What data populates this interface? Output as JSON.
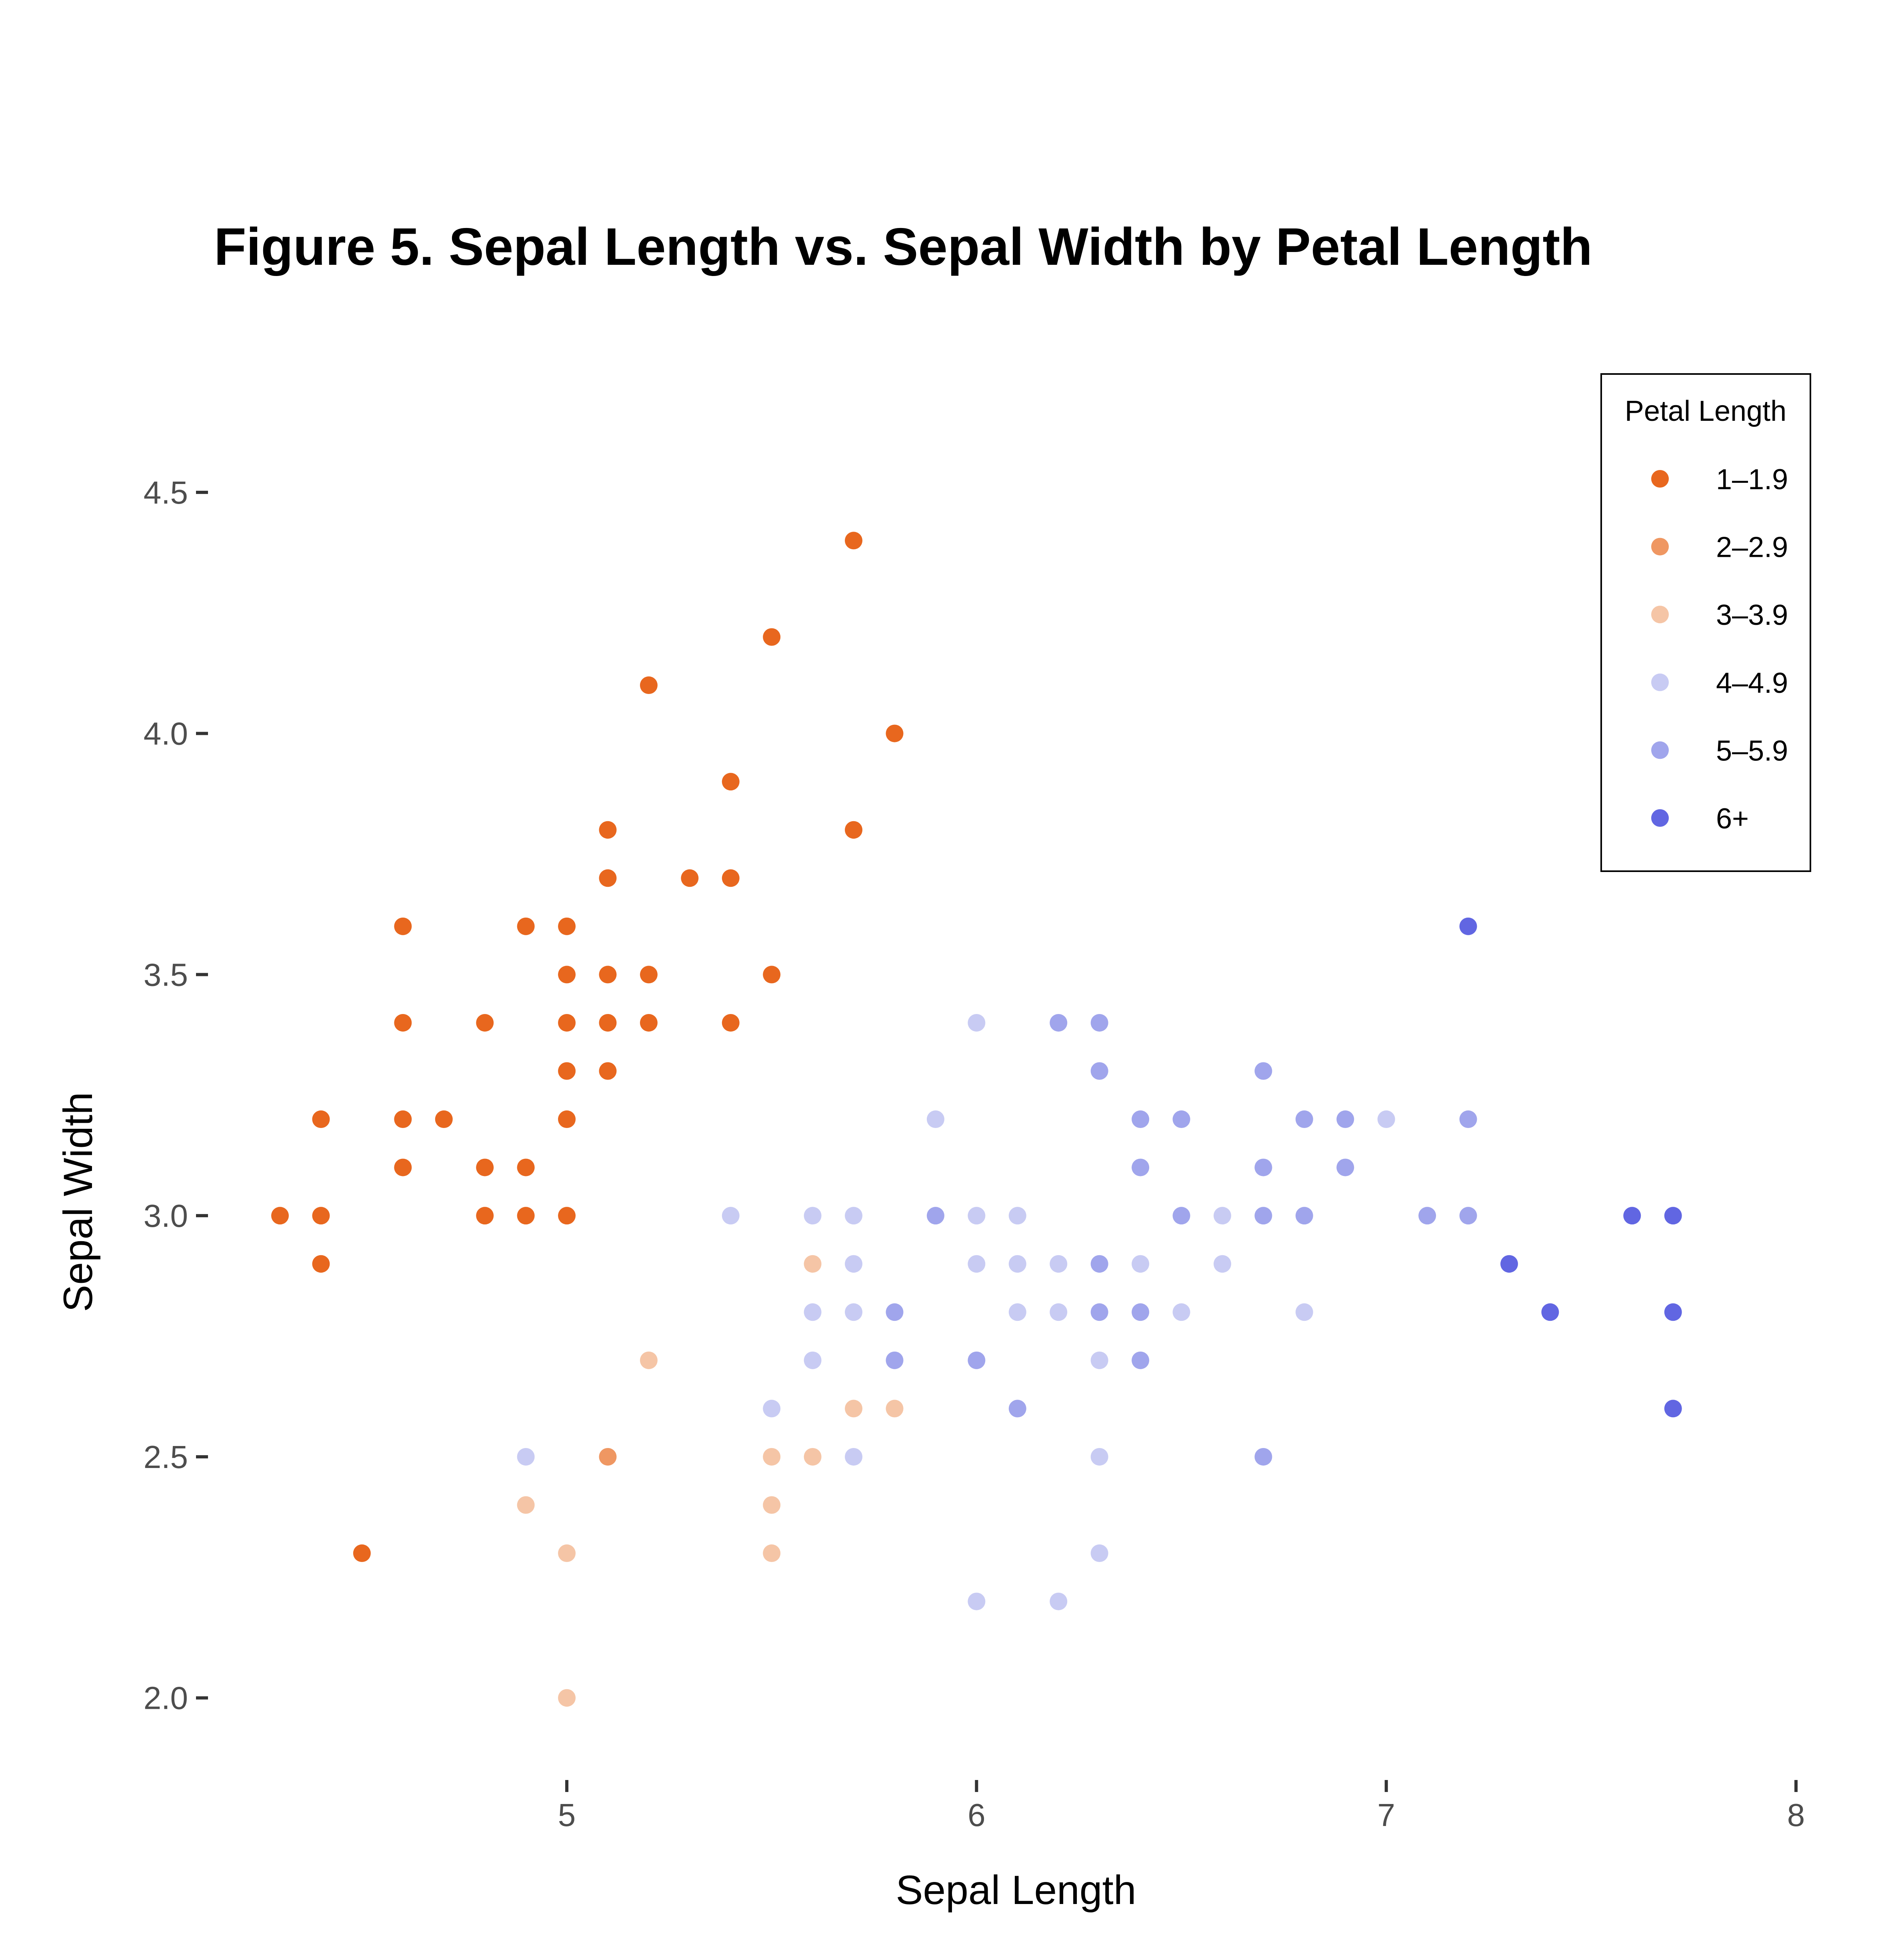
{
  "chart_data": {
    "type": "scatter",
    "title": "Figure 5. Sepal Length vs. Sepal Width by Petal Length",
    "xlabel": "Sepal Length",
    "ylabel": "Sepal Width",
    "xlim": [
      4.3,
      8.0
    ],
    "ylim": [
      1.95,
      4.65
    ],
    "x_ticks": [
      "5",
      "6",
      "7",
      "8"
    ],
    "y_ticks": [
      "2.0",
      "2.5",
      "3.0",
      "3.5",
      "4.0",
      "4.5"
    ],
    "grid": false,
    "legend": {
      "title": "Petal Length",
      "position": "top-right",
      "entries": [
        "1–1.9",
        "2–2.9",
        "3–3.9",
        "4–4.9",
        "5–5.9",
        "6+"
      ]
    },
    "colors": {
      "1–1.9": "#e8671e",
      "2–2.9": "#ef9762",
      "3–3.9": "#f5c5a6",
      "4–4.9": "#c8cbf3",
      "5–5.9": "#a0a5ec",
      "6+": "#6166e2"
    },
    "series": [
      {
        "name": "1–1.9",
        "points": [
          [
            4.3,
            3.0
          ],
          [
            4.4,
            3.2
          ],
          [
            4.4,
            3.0
          ],
          [
            4.4,
            2.9
          ],
          [
            4.5,
            2.3
          ],
          [
            4.6,
            3.6
          ],
          [
            4.6,
            3.4
          ],
          [
            4.6,
            3.2
          ],
          [
            4.6,
            3.1
          ],
          [
            4.7,
            3.2
          ],
          [
            4.8,
            3.4
          ],
          [
            4.8,
            3.1
          ],
          [
            4.8,
            3.0
          ],
          [
            4.9,
            3.6
          ],
          [
            4.9,
            3.1
          ],
          [
            4.9,
            3.0
          ],
          [
            5.0,
            3.6
          ],
          [
            5.0,
            3.5
          ],
          [
            5.0,
            3.4
          ],
          [
            5.0,
            3.3
          ],
          [
            5.0,
            3.2
          ],
          [
            5.0,
            3.0
          ],
          [
            5.1,
            3.8
          ],
          [
            5.1,
            3.7
          ],
          [
            5.1,
            3.5
          ],
          [
            5.1,
            3.4
          ],
          [
            5.1,
            3.3
          ],
          [
            5.2,
            4.1
          ],
          [
            5.2,
            3.5
          ],
          [
            5.2,
            3.4
          ],
          [
            5.3,
            3.7
          ],
          [
            5.4,
            3.9
          ],
          [
            5.4,
            3.7
          ],
          [
            5.4,
            3.4
          ],
          [
            5.5,
            4.2
          ],
          [
            5.5,
            3.5
          ],
          [
            5.7,
            4.4
          ],
          [
            5.7,
            3.8
          ],
          [
            5.8,
            4.0
          ]
        ]
      },
      {
        "name": "2–2.9",
        "points": [
          [
            5.1,
            2.5
          ]
        ]
      },
      {
        "name": "3–3.9",
        "points": [
          [
            4.9,
            2.4
          ],
          [
            5.0,
            2.3
          ],
          [
            5.0,
            2.0
          ],
          [
            5.2,
            2.7
          ],
          [
            5.5,
            2.5
          ],
          [
            5.5,
            2.4
          ],
          [
            5.5,
            2.3
          ],
          [
            5.6,
            2.9
          ],
          [
            5.6,
            2.5
          ],
          [
            5.7,
            2.6
          ],
          [
            5.8,
            2.6
          ]
        ]
      },
      {
        "name": "4–4.9",
        "points": [
          [
            4.9,
            2.5
          ],
          [
            5.4,
            3.0
          ],
          [
            5.5,
            2.6
          ],
          [
            5.6,
            3.0
          ],
          [
            5.6,
            2.8
          ],
          [
            5.6,
            2.7
          ],
          [
            5.7,
            3.0
          ],
          [
            5.7,
            2.9
          ],
          [
            5.7,
            2.8
          ],
          [
            5.7,
            2.5
          ],
          [
            5.9,
            3.2
          ],
          [
            6.0,
            3.4
          ],
          [
            6.0,
            3.0
          ],
          [
            6.0,
            2.9
          ],
          [
            6.0,
            2.2
          ],
          [
            6.1,
            3.0
          ],
          [
            6.1,
            2.9
          ],
          [
            6.1,
            2.8
          ],
          [
            6.2,
            2.9
          ],
          [
            6.2,
            2.8
          ],
          [
            6.2,
            2.2
          ],
          [
            6.3,
            2.7
          ],
          [
            6.3,
            2.5
          ],
          [
            6.3,
            2.3
          ],
          [
            6.4,
            2.9
          ],
          [
            6.5,
            2.8
          ],
          [
            6.6,
            3.0
          ],
          [
            6.6,
            2.9
          ],
          [
            6.8,
            2.8
          ],
          [
            7.0,
            3.2
          ]
        ]
      },
      {
        "name": "5–5.9",
        "points": [
          [
            5.8,
            2.8
          ],
          [
            5.8,
            2.7
          ],
          [
            5.9,
            3.0
          ],
          [
            6.0,
            2.7
          ],
          [
            6.1,
            2.6
          ],
          [
            6.2,
            3.4
          ],
          [
            6.3,
            3.4
          ],
          [
            6.3,
            3.3
          ],
          [
            6.3,
            2.9
          ],
          [
            6.3,
            2.8
          ],
          [
            6.4,
            3.2
          ],
          [
            6.4,
            3.1
          ],
          [
            6.4,
            2.8
          ],
          [
            6.4,
            2.7
          ],
          [
            6.5,
            3.2
          ],
          [
            6.5,
            3.0
          ],
          [
            6.7,
            3.3
          ],
          [
            6.7,
            3.1
          ],
          [
            6.7,
            3.0
          ],
          [
            6.7,
            2.5
          ],
          [
            6.8,
            3.2
          ],
          [
            6.8,
            3.0
          ],
          [
            6.9,
            3.2
          ],
          [
            6.9,
            3.1
          ],
          [
            7.1,
            3.0
          ],
          [
            7.2,
            3.2
          ],
          [
            7.2,
            3.0
          ]
        ]
      },
      {
        "name": "6+",
        "points": [
          [
            7.2,
            3.6
          ],
          [
            7.3,
            2.9
          ],
          [
            7.4,
            2.8
          ],
          [
            7.6,
            3.0
          ],
          [
            7.7,
            3.0
          ],
          [
            7.7,
            2.8
          ],
          [
            7.7,
            2.6
          ]
        ]
      }
    ]
  }
}
